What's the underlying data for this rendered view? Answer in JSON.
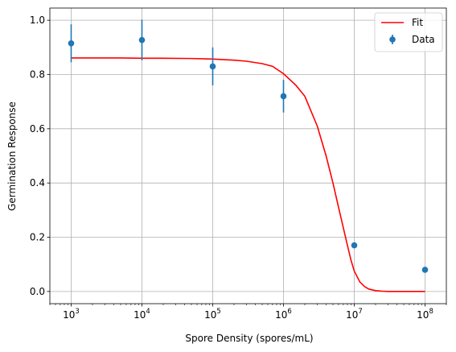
{
  "chart_data": {
    "type": "scatter",
    "title": "",
    "xlabel": "Spore Density (spores/mL)",
    "ylabel": "Germination Response",
    "xscale": "log",
    "xlim": [
      500,
      200000000
    ],
    "ylim": [
      -0.045,
      1.045
    ],
    "grid": true,
    "legend_position": "top-right",
    "xticks": [
      {
        "value": 1000,
        "base": "10",
        "exp": "3"
      },
      {
        "value": 10000,
        "base": "10",
        "exp": "4"
      },
      {
        "value": 100000,
        "base": "10",
        "exp": "5"
      },
      {
        "value": 1000000,
        "base": "10",
        "exp": "6"
      },
      {
        "value": 10000000,
        "base": "10",
        "exp": "7"
      },
      {
        "value": 100000000,
        "base": "10",
        "exp": "8"
      }
    ],
    "yticks": [
      {
        "value": 0.0,
        "label": "0.0"
      },
      {
        "value": 0.2,
        "label": "0.2"
      },
      {
        "value": 0.4,
        "label": "0.4"
      },
      {
        "value": 0.6,
        "label": "0.6"
      },
      {
        "value": 0.8,
        "label": "0.8"
      },
      {
        "value": 1.0,
        "label": "1.0"
      }
    ],
    "series": [
      {
        "name": "Data",
        "kind": "errorbar",
        "color": "#1f77b4",
        "x": [
          1000,
          10000,
          100000,
          1000000,
          10000000,
          100000000
        ],
        "y": [
          0.915,
          0.927,
          0.83,
          0.72,
          0.17,
          0.08
        ],
        "yerr": [
          0.07,
          0.075,
          0.07,
          0.06,
          0.0,
          0.0
        ]
      },
      {
        "name": "Fit",
        "kind": "line",
        "color": "#ff0000",
        "x": [
          1000,
          2000,
          5000,
          10000,
          20000,
          50000,
          100000,
          200000,
          300000,
          500000,
          700000,
          1000000,
          1500000,
          2000000,
          3000000,
          4000000,
          5000000,
          6000000,
          7000000,
          8000000,
          9000000,
          10000000,
          12000000,
          14000000,
          16000000,
          20000000,
          25000000,
          30000000,
          50000000,
          100000000
        ],
        "y": [
          0.861,
          0.861,
          0.861,
          0.86,
          0.86,
          0.859,
          0.857,
          0.853,
          0.849,
          0.84,
          0.83,
          0.803,
          0.76,
          0.72,
          0.61,
          0.5,
          0.4,
          0.31,
          0.235,
          0.17,
          0.115,
          0.075,
          0.035,
          0.018,
          0.009,
          0.003,
          0.001,
          0.0,
          0.0,
          0.0
        ]
      }
    ],
    "legend": [
      {
        "label": "Fit",
        "marker": "line",
        "color": "#ff0000"
      },
      {
        "label": "Data",
        "marker": "errorbar",
        "color": "#1f77b4"
      }
    ]
  }
}
